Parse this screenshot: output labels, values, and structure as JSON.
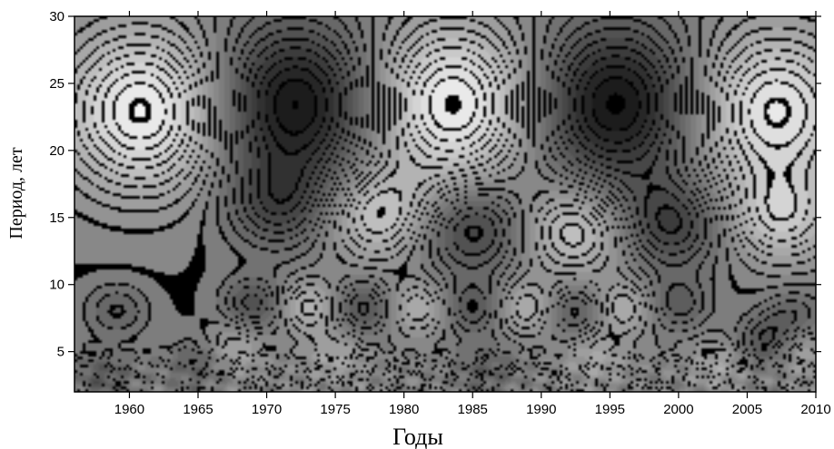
{
  "chart_data": {
    "type": "heatmap",
    "title": "",
    "xlabel": "Годы",
    "ylabel": "Период, лет",
    "xlim": [
      1956,
      2010
    ],
    "ylim": [
      2,
      30
    ],
    "x_ticks": [
      1960,
      1965,
      1970,
      1975,
      1980,
      1985,
      1990,
      1995,
      2000,
      2005,
      2010
    ],
    "y_ticks": [
      5,
      10,
      15,
      20,
      25,
      30
    ],
    "colormap": "grayscale",
    "color_low": "#111111",
    "color_high": "#ffffff",
    "contour_lines": true,
    "grid": false,
    "features": [
      {
        "kind": "high",
        "x": 1961,
        "y": 23,
        "value": 1.0
      },
      {
        "kind": "low",
        "x": 1972,
        "y": 23.5,
        "value": -1.0
      },
      {
        "kind": "high",
        "x": 1983.5,
        "y": 23.5,
        "value": 1.0
      },
      {
        "kind": "low",
        "x": 1995.5,
        "y": 23.5,
        "value": -1.0
      },
      {
        "kind": "high",
        "x": 2007,
        "y": 23,
        "value": 0.9
      },
      {
        "kind": "high",
        "x": 1978,
        "y": 15.2,
        "value": 0.6
      },
      {
        "kind": "low",
        "x": 1985,
        "y": 14.2,
        "value": -0.6
      },
      {
        "kind": "high",
        "x": 1992.5,
        "y": 14,
        "value": 0.6
      },
      {
        "kind": "low",
        "x": 1999.5,
        "y": 14.5,
        "value": -0.6
      },
      {
        "kind": "low",
        "x": 1971,
        "y": 16,
        "value": -0.5
      },
      {
        "kind": "high",
        "x": 2007.5,
        "y": 15,
        "value": 0.55
      },
      {
        "kind": "low",
        "x": 1959,
        "y": 8,
        "value": -0.3
      },
      {
        "kind": "low",
        "x": 1969,
        "y": 8.5,
        "value": -0.45
      },
      {
        "kind": "high",
        "x": 1973,
        "y": 8.3,
        "value": 0.45
      },
      {
        "kind": "low",
        "x": 1977,
        "y": 8.2,
        "value": -0.45
      },
      {
        "kind": "high",
        "x": 1981,
        "y": 8.2,
        "value": 0.4
      },
      {
        "kind": "low",
        "x": 1985,
        "y": 8.2,
        "value": -0.4
      },
      {
        "kind": "high",
        "x": 1989,
        "y": 8.2,
        "value": 0.4
      },
      {
        "kind": "low",
        "x": 1992.5,
        "y": 8,
        "value": -0.4
      },
      {
        "kind": "high",
        "x": 1996,
        "y": 8.2,
        "value": 0.4
      },
      {
        "kind": "low",
        "x": 2000,
        "y": 8.5,
        "value": -0.35
      },
      {
        "kind": "low",
        "x": 2008.5,
        "y": 7.5,
        "value": -0.3
      },
      {
        "kind": "high",
        "x": 1967.5,
        "y": 5,
        "value": 0.35
      },
      {
        "kind": "low",
        "x": 1965,
        "y": 4,
        "value": -0.35
      },
      {
        "kind": "high",
        "x": 1975,
        "y": 4.5,
        "value": 0.3
      },
      {
        "kind": "low",
        "x": 1986,
        "y": 3.5,
        "value": -0.3
      },
      {
        "kind": "high",
        "x": 1994,
        "y": 4.5,
        "value": 0.3
      },
      {
        "kind": "low",
        "x": 2006.5,
        "y": 5.5,
        "value": -0.45
      },
      {
        "kind": "high",
        "x": 2009,
        "y": 5,
        "value": 0.35
      },
      {
        "kind": "low",
        "x": 1958,
        "y": 3,
        "value": -0.35
      },
      {
        "kind": "high",
        "x": 2003,
        "y": 4,
        "value": 0.3
      }
    ]
  }
}
